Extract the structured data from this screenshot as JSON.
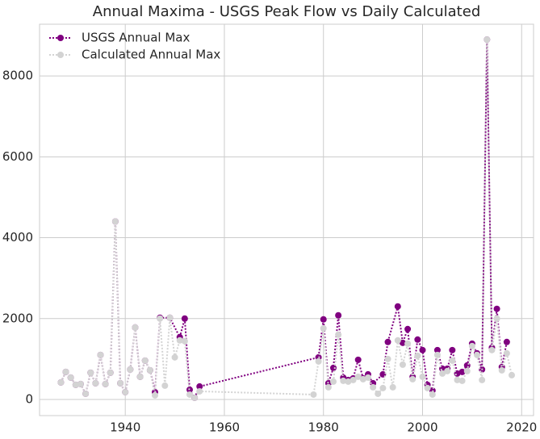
{
  "chart_data": {
    "type": "line",
    "title": "Annual Maxima - USGS Peak Flow vs Daily Calculated",
    "series": [
      {
        "name": "USGS Annual Max",
        "color": "#800080",
        "x": [
          1927,
          1928,
          1929,
          1930,
          1931,
          1932,
          1933,
          1934,
          1935,
          1936,
          1937,
          1938,
          1939,
          1940,
          1941,
          1942,
          1943,
          1944,
          1945,
          1946,
          1947,
          1949,
          1951,
          1952,
          1953,
          1954,
          1955,
          1979,
          1980,
          1981,
          1982,
          1983,
          1984,
          1985,
          1986,
          1987,
          1988,
          1989,
          1990,
          1992,
          1993,
          1995,
          1996,
          1997,
          1998,
          1999,
          2000,
          2001,
          2002,
          2003,
          2004,
          2005,
          2006,
          2007,
          2008,
          2009,
          2010,
          2011,
          2012,
          2013,
          2014,
          2015,
          2016,
          2017
        ],
        "values": [
          420,
          680,
          540,
          360,
          380,
          140,
          660,
          400,
          1100,
          380,
          660,
          4400,
          400,
          180,
          740,
          1780,
          560,
          960,
          720,
          180,
          2020,
          2020,
          1540,
          2000,
          240,
          40,
          320,
          1040,
          1980,
          400,
          780,
          2080,
          540,
          480,
          520,
          980,
          520,
          620,
          400,
          620,
          1420,
          2300,
          1400,
          1740,
          560,
          1480,
          1220,
          360,
          220,
          1220,
          760,
          760,
          1220,
          640,
          680,
          840,
          1380,
          1140,
          740,
          8900,
          1280,
          2240,
          800,
          1420
        ]
      },
      {
        "name": "Calculated Annual Max",
        "color": "#d3d3d3",
        "x": [
          1927,
          1928,
          1929,
          1930,
          1931,
          1932,
          1933,
          1934,
          1935,
          1936,
          1937,
          1938,
          1939,
          1940,
          1941,
          1942,
          1943,
          1944,
          1945,
          1946,
          1947,
          1948,
          1949,
          1950,
          1951,
          1952,
          1953,
          1954,
          1955,
          1978,
          1979,
          1980,
          1981,
          1982,
          1983,
          1984,
          1985,
          1986,
          1987,
          1988,
          1989,
          1990,
          1991,
          1992,
          1993,
          1994,
          1995,
          1996,
          1997,
          1998,
          1999,
          2000,
          2001,
          2002,
          2003,
          2004,
          2005,
          2006,
          2007,
          2008,
          2009,
          2010,
          2011,
          2012,
          2013,
          2014,
          2015,
          2016,
          2017,
          2018
        ],
        "values": [
          420,
          680,
          540,
          360,
          380,
          140,
          660,
          400,
          1100,
          380,
          660,
          4400,
          400,
          180,
          740,
          1780,
          560,
          960,
          720,
          100,
          2000,
          340,
          2020,
          1040,
          1460,
          1440,
          120,
          40,
          200,
          120,
          940,
          1760,
          300,
          440,
          1600,
          460,
          440,
          480,
          560,
          500,
          540,
          300,
          140,
          280,
          1000,
          300,
          1460,
          860,
          1380,
          500,
          1080,
          560,
          280,
          120,
          1100,
          640,
          700,
          960,
          480,
          460,
          700,
          1320,
          1100,
          480,
          8900,
          1220,
          2000,
          720,
          1140,
          600
        ]
      }
    ],
    "xlim": [
      1922.7,
      2022.4
    ],
    "xticks": [
      1940,
      1960,
      1980,
      2000,
      2020
    ],
    "ylim": [
      -400,
      9280
    ],
    "yticks": [
      0,
      2000,
      4000,
      6000,
      8000
    ],
    "grid": true,
    "legend": "upper left"
  }
}
